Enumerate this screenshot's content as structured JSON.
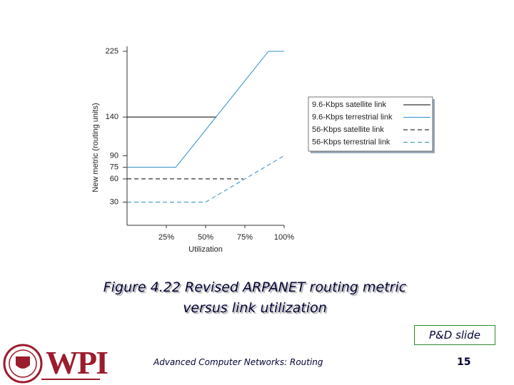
{
  "chart_data": {
    "type": "line",
    "xlabel": "Utilization",
    "ylabel": "New metric (routing units)",
    "xlim": [
      0,
      100
    ],
    "ylim": [
      0,
      225
    ],
    "xticks": [
      {
        "value": 25,
        "label": "25%"
      },
      {
        "value": 50,
        "label": "50%"
      },
      {
        "value": 75,
        "label": "75%"
      },
      {
        "value": 100,
        "label": "100%"
      }
    ],
    "yticks": [
      30,
      60,
      75,
      90,
      140,
      225
    ],
    "legend": "right",
    "series": [
      {
        "name": "9.6-Kbps satellite link",
        "color": "#000000",
        "dashed": false,
        "x": [
          0,
          57
        ],
        "values": [
          140,
          140
        ]
      },
      {
        "name": "9.6-Kbps terrestrial link",
        "color": "#2a8fc8",
        "dashed": false,
        "x": [
          0,
          31,
          90,
          100
        ],
        "values": [
          75,
          75,
          225,
          225
        ]
      },
      {
        "name": "56-Kbps satellite link",
        "color": "#000000",
        "dashed": true,
        "x": [
          0,
          74
        ],
        "values": [
          60,
          60
        ]
      },
      {
        "name": "56-Kbps terrestrial link",
        "color": "#2a8fc8",
        "dashed": true,
        "x": [
          0,
          50,
          100
        ],
        "values": [
          30,
          30,
          90
        ]
      }
    ]
  },
  "caption": [
    "Figure 4.22 Revised ARPANET routing metric",
    "versus link utilization"
  ],
  "badge": "P&D slide",
  "footer": {
    "logo": "WPI",
    "course": "Advanced Computer Networks: Routing",
    "page": "15"
  }
}
